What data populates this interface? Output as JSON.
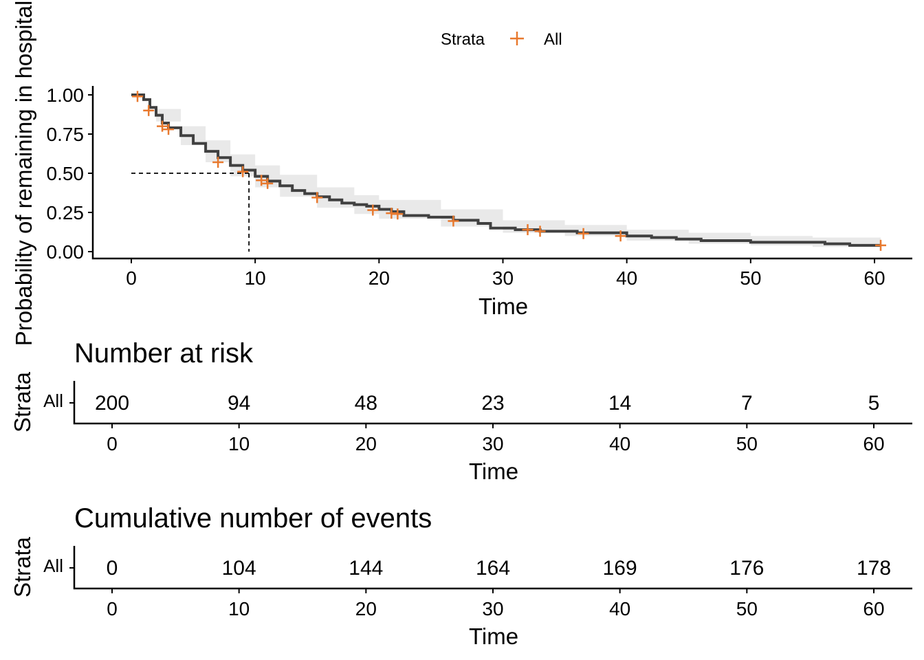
{
  "chart_data": {
    "type": "line",
    "legend": {
      "title": "Strata",
      "entries": [
        "All"
      ],
      "placement": "top"
    },
    "colors": {
      "curve": "#404040",
      "censor": "#E8792E",
      "ci_band": "#E9E9E9"
    },
    "survival_plot": {
      "ylabel": "Probability of remaining in hospital",
      "xlabel": "Time",
      "xlim": [
        0,
        60
      ],
      "ylim": [
        0,
        1
      ],
      "x_ticks": [
        "0",
        "10",
        "20",
        "30",
        "40",
        "50",
        "60"
      ],
      "y_ticks": [
        "0.00",
        "0.25",
        "0.50",
        "0.75",
        "1.00"
      ],
      "median_survival": 9.5,
      "curve": [
        [
          0,
          1.0
        ],
        [
          1,
          0.97
        ],
        [
          1.5,
          0.92
        ],
        [
          2,
          0.87
        ],
        [
          2.5,
          0.82
        ],
        [
          3,
          0.79
        ],
        [
          4,
          0.74
        ],
        [
          5,
          0.69
        ],
        [
          6,
          0.64
        ],
        [
          7,
          0.6
        ],
        [
          8,
          0.55
        ],
        [
          9,
          0.52
        ],
        [
          10,
          0.48
        ],
        [
          11,
          0.45
        ],
        [
          12,
          0.42
        ],
        [
          13,
          0.39
        ],
        [
          14,
          0.37
        ],
        [
          15,
          0.35
        ],
        [
          16,
          0.33
        ],
        [
          17,
          0.31
        ],
        [
          18,
          0.3
        ],
        [
          19,
          0.29
        ],
        [
          20,
          0.27
        ],
        [
          21,
          0.255
        ],
        [
          22,
          0.23
        ],
        [
          24,
          0.22
        ],
        [
          26,
          0.2
        ],
        [
          28,
          0.18
        ],
        [
          29,
          0.15
        ],
        [
          31,
          0.14
        ],
        [
          33,
          0.13
        ],
        [
          36,
          0.12
        ],
        [
          40,
          0.1
        ],
        [
          42,
          0.09
        ],
        [
          44,
          0.08
        ],
        [
          46,
          0.07
        ],
        [
          50,
          0.06
        ],
        [
          56,
          0.05
        ],
        [
          58,
          0.04
        ],
        [
          60.5,
          0.04
        ]
      ],
      "ci_lower": [
        [
          0,
          1.0
        ],
        [
          2,
          0.83
        ],
        [
          4,
          0.68
        ],
        [
          6,
          0.57
        ],
        [
          8,
          0.48
        ],
        [
          10,
          0.41
        ],
        [
          12,
          0.35
        ],
        [
          15,
          0.28
        ],
        [
          18,
          0.24
        ],
        [
          20,
          0.21
        ],
        [
          25,
          0.16
        ],
        [
          30,
          0.12
        ],
        [
          35,
          0.1
        ],
        [
          40,
          0.07
        ],
        [
          45,
          0.05
        ],
        [
          50,
          0.04
        ],
        [
          55,
          0.03
        ],
        [
          60.5,
          0.02
        ]
      ],
      "ci_upper": [
        [
          0,
          1.0
        ],
        [
          2,
          0.91
        ],
        [
          4,
          0.8
        ],
        [
          6,
          0.71
        ],
        [
          8,
          0.62
        ],
        [
          10,
          0.55
        ],
        [
          12,
          0.49
        ],
        [
          15,
          0.41
        ],
        [
          18,
          0.36
        ],
        [
          20,
          0.33
        ],
        [
          25,
          0.27
        ],
        [
          30,
          0.2
        ],
        [
          35,
          0.17
        ],
        [
          40,
          0.14
        ],
        [
          45,
          0.12
        ],
        [
          50,
          0.1
        ],
        [
          55,
          0.09
        ],
        [
          60.5,
          0.07
        ]
      ],
      "censor_points": [
        [
          0.5,
          0.99
        ],
        [
          1.4,
          0.9
        ],
        [
          2.5,
          0.8
        ],
        [
          3,
          0.78
        ],
        [
          7,
          0.57
        ],
        [
          9,
          0.51
        ],
        [
          10.5,
          0.455
        ],
        [
          11,
          0.435
        ],
        [
          15,
          0.345
        ],
        [
          19.5,
          0.265
        ],
        [
          21,
          0.245
        ],
        [
          21.5,
          0.24
        ],
        [
          26,
          0.195
        ],
        [
          32,
          0.14
        ],
        [
          33,
          0.13
        ],
        [
          36.5,
          0.115
        ],
        [
          39.5,
          0.1
        ],
        [
          60.5,
          0.04
        ]
      ]
    },
    "risk_table": {
      "title": "Number at risk",
      "ylabel": "Strata",
      "xlabel": "Time",
      "strata": "All",
      "x_ticks": [
        "0",
        "10",
        "20",
        "30",
        "40",
        "50",
        "60"
      ],
      "times": [
        0,
        10,
        20,
        30,
        40,
        50,
        60
      ],
      "values": [
        "200",
        "94",
        "48",
        "23",
        "14",
        "7",
        "5"
      ]
    },
    "events_table": {
      "title": "Cumulative number of events",
      "ylabel": "Strata",
      "xlabel": "Time",
      "strata": "All",
      "x_ticks": [
        "0",
        "10",
        "20",
        "30",
        "40",
        "50",
        "60"
      ],
      "times": [
        0,
        10,
        20,
        30,
        40,
        50,
        60
      ],
      "values": [
        "0",
        "104",
        "144",
        "164",
        "169",
        "176",
        "178"
      ]
    }
  }
}
